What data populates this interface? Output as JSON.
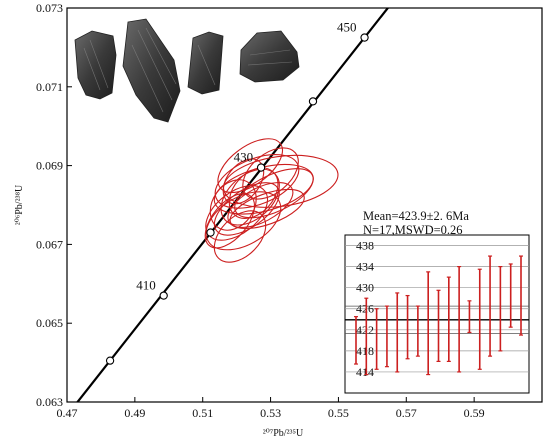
{
  "chart_data": [
    {
      "type": "scatter",
      "title": "",
      "xlabel": "²⁰⁷Pb/²³⁵U",
      "ylabel": "²⁰⁶Pb/²³⁸U",
      "xlim": [
        0.47,
        0.61
      ],
      "ylim": [
        0.063,
        0.073
      ],
      "x_ticks": [
        "0.47",
        "0.49",
        "0.51",
        "0.53",
        "0.55",
        "0.57",
        "0.59"
      ],
      "y_ticks": [
        "0.063",
        "0.065",
        "0.067",
        "0.069",
        "0.071",
        "0.073"
      ],
      "concordia": {
        "color": "#000000",
        "points": [
          {
            "x": 0.4827,
            "y": 0.06405,
            "label": ""
          },
          {
            "x": 0.4985,
            "y": 0.0657,
            "label": "410"
          },
          {
            "x": 0.5123,
            "y": 0.0673,
            "label": ""
          },
          {
            "x": 0.5272,
            "y": 0.06895,
            "label": "430"
          },
          {
            "x": 0.5425,
            "y": 0.07063,
            "label": ""
          },
          {
            "x": 0.5577,
            "y": 0.07225,
            "label": "450"
          }
        ]
      },
      "error_ellipses": {
        "color": "#cc1f1f",
        "items": [
          {
            "cx": 0.52,
            "cy": 0.0678,
            "rx": 0.021,
            "ry": 0.00095,
            "angle": -38
          },
          {
            "cx": 0.522,
            "cy": 0.0676,
            "rx": 0.024,
            "ry": 0.0011,
            "angle": -30
          },
          {
            "cx": 0.524,
            "cy": 0.0682,
            "rx": 0.02,
            "ry": 0.001,
            "angle": -42
          },
          {
            "cx": 0.526,
            "cy": 0.0686,
            "rx": 0.026,
            "ry": 0.00105,
            "angle": -22
          },
          {
            "cx": 0.528,
            "cy": 0.0684,
            "rx": 0.03,
            "ry": 0.001,
            "angle": -15
          },
          {
            "cx": 0.533,
            "cy": 0.0686,
            "rx": 0.034,
            "ry": 0.00115,
            "angle": -8
          },
          {
            "cx": 0.521,
            "cy": 0.0672,
            "rx": 0.018,
            "ry": 0.0009,
            "angle": -45
          },
          {
            "cx": 0.519,
            "cy": 0.068,
            "rx": 0.016,
            "ry": 0.00095,
            "angle": -55
          },
          {
            "cx": 0.523,
            "cy": 0.0679,
            "rx": 0.022,
            "ry": 0.00085,
            "angle": -35
          },
          {
            "cx": 0.525,
            "cy": 0.0683,
            "rx": 0.017,
            "ry": 0.00092,
            "angle": -48
          },
          {
            "cx": 0.527,
            "cy": 0.068,
            "rx": 0.021,
            "ry": 0.00078,
            "angle": -28
          },
          {
            "cx": 0.53,
            "cy": 0.0688,
            "rx": 0.019,
            "ry": 0.0009,
            "angle": -40
          },
          {
            "cx": 0.518,
            "cy": 0.0676,
            "rx": 0.019,
            "ry": 0.0008,
            "angle": -50
          },
          {
            "cx": 0.524,
            "cy": 0.069,
            "rx": 0.022,
            "ry": 0.00088,
            "angle": -36
          },
          {
            "cx": 0.529,
            "cy": 0.0679,
            "rx": 0.023,
            "ry": 0.0007,
            "angle": -20
          },
          {
            "cx": 0.522,
            "cy": 0.0686,
            "rx": 0.015,
            "ry": 0.00075,
            "angle": -52
          },
          {
            "cx": 0.531,
            "cy": 0.0683,
            "rx": 0.025,
            "ry": 0.00085,
            "angle": -25
          }
        ]
      },
      "zircon_images": 4
    },
    {
      "type": "bar",
      "subtype": "weighted-mean-error-bars",
      "annotation_lines": [
        "Mean=423.9±2. 6Ma",
        "N=17,MSWD=0.26"
      ],
      "ylim": [
        410,
        440
      ],
      "y_ticks": [
        "414",
        "418",
        "422",
        "426",
        "430",
        "434",
        "438"
      ],
      "mean": 423.9,
      "mean_band": [
        421.3,
        426.5
      ],
      "color": "#cc1f1f",
      "bars": [
        {
          "low": 415.5,
          "high": 424.5
        },
        {
          "low": 413.5,
          "high": 428.0
        },
        {
          "low": 414.5,
          "high": 426.0
        },
        {
          "low": 415.0,
          "high": 426.5
        },
        {
          "low": 414.0,
          "high": 429.0
        },
        {
          "low": 416.5,
          "high": 428.5
        },
        {
          "low": 417.0,
          "high": 426.5
        },
        {
          "low": 413.5,
          "high": 433.0
        },
        {
          "low": 416.0,
          "high": 429.5
        },
        {
          "low": 416.0,
          "high": 432.0
        },
        {
          "low": 414.0,
          "high": 434.0
        },
        {
          "low": 421.5,
          "high": 427.5
        },
        {
          "low": 414.5,
          "high": 433.5
        },
        {
          "low": 417.0,
          "high": 436.0
        },
        {
          "low": 418.0,
          "high": 434.0
        },
        {
          "low": 422.5,
          "high": 434.5
        },
        {
          "low": 421.0,
          "high": 436.0
        }
      ]
    }
  ]
}
